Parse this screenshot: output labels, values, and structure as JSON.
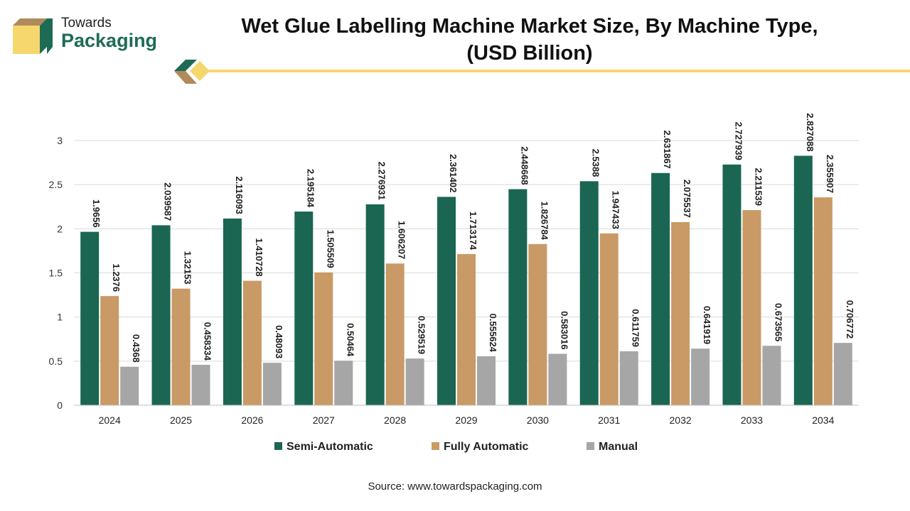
{
  "brand": {
    "line1": "Towards",
    "line2": "Packaging"
  },
  "header": {
    "title_line1": "Wet Glue Labelling Machine Market Size, By Machine Type,",
    "title_line2": "(USD Billion)"
  },
  "colors": {
    "semi": "#1a6652",
    "fully": "#c99a66",
    "manual": "#a6a6a6",
    "accent_yellow": "#f5d76e",
    "brand_green": "#1e6b55",
    "brand_brown": "#b08a5a"
  },
  "chart_data": {
    "type": "bar",
    "categories": [
      "2024",
      "2025",
      "2026",
      "2027",
      "2028",
      "2029",
      "2030",
      "2031",
      "2032",
      "2033",
      "2034"
    ],
    "series": [
      {
        "name": "Semi-Automatic",
        "color": "#1a6652",
        "values": [
          1.9656,
          2.039587,
          2.116093,
          2.195184,
          2.276931,
          2.361402,
          2.448668,
          2.5388,
          2.631867,
          2.727939,
          2.827088
        ],
        "labels": [
          "1.9656",
          "2.039587",
          "2.116093",
          "2.195184",
          "2.276931",
          "2.361402",
          "2.448668",
          "2.5388",
          "2.631867",
          "2.727939",
          "2.827088"
        ]
      },
      {
        "name": "Fully Automatic",
        "color": "#c99a66",
        "values": [
          1.2376,
          1.32153,
          1.410728,
          1.505509,
          1.606207,
          1.713174,
          1.826784,
          1.947433,
          2.075537,
          2.211539,
          2.355907
        ],
        "labels": [
          "1.2376",
          "1.32153",
          "1.410728",
          "1.505509",
          "1.606207",
          "1.713174",
          "1.826784",
          "1.947433",
          "2.075537",
          "2.211539",
          "2.355907"
        ]
      },
      {
        "name": "Manual",
        "color": "#a6a6a6",
        "values": [
          0.4368,
          0.458334,
          0.48093,
          0.50464,
          0.529519,
          0.555624,
          0.583016,
          0.611759,
          0.641919,
          0.673565,
          0.706772
        ],
        "labels": [
          "0.4368",
          "0.458334",
          "0.48093",
          "0.50464",
          "0.529519",
          "0.555624",
          "0.583016",
          "0.611759",
          "0.641919",
          "0.673565",
          "0.706772"
        ]
      }
    ],
    "yticks": [
      "0",
      "0.5",
      "1",
      "1.5",
      "2",
      "2.5",
      "3"
    ],
    "ylim": [
      0,
      3
    ],
    "grid": true,
    "legend_position": "bottom"
  },
  "source": "Source: www.towardspackaging.com"
}
